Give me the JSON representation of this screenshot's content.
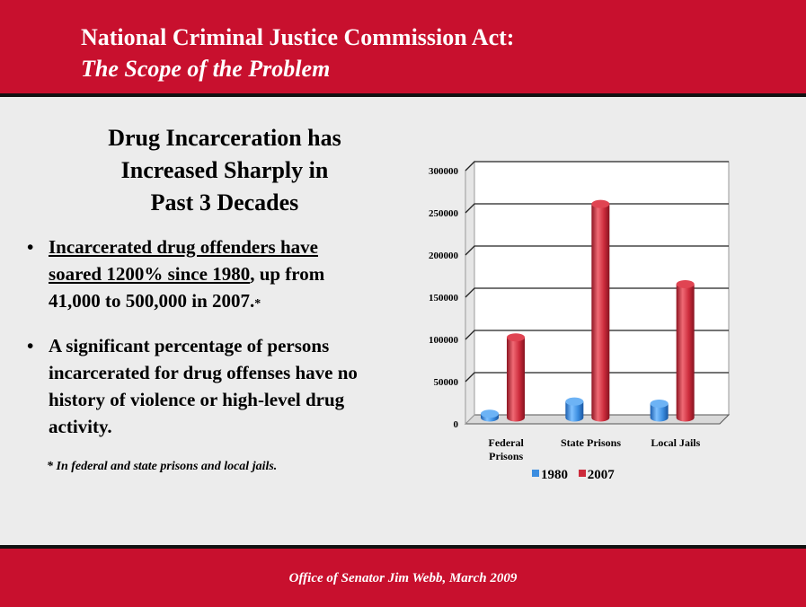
{
  "header": {
    "title_line1": "National Criminal Justice Commission Act:",
    "title_line2": "The Scope of the Problem"
  },
  "subtitle": [
    "Drug Incarceration has",
    "Increased Sharply in",
    "Past 3 Decades"
  ],
  "bullets": [
    {
      "bullet_char": "•",
      "underlined_l1": "Incarcerated drug offenders have",
      "underlined_l2": "soared 1200% since 1980",
      "rest_l2": ", up from",
      "l3": "41,000 to 500,000 in 2007.",
      "asterisk": "*"
    },
    {
      "bullet_char": "•",
      "lines": [
        "A significant percentage of persons",
        "incarcerated for drug offenses have no",
        "history of violence or high-level drug",
        "activity."
      ]
    }
  ],
  "footnote": "* In federal and state prisons and local jails.",
  "footer": {
    "text": "Office of Senator Jim Webb, March 2009"
  },
  "colors": {
    "accent_red": "#c8102e",
    "series_1980": "#3b8de0",
    "series_2007": "#cc2b3b"
  },
  "chart_data": {
    "type": "bar",
    "categories": [
      [
        "Federal",
        "Prisons"
      ],
      [
        "State Prisons"
      ],
      [
        "Local Jails"
      ]
    ],
    "series": [
      {
        "name": "1980",
        "values": [
          4500,
          19000,
          16500
        ]
      },
      {
        "name": "2007",
        "values": [
          95000,
          253000,
          158000
        ]
      }
    ],
    "ylim": [
      0,
      300000
    ],
    "yticks": [
      "0",
      "50000",
      "100000",
      "150000",
      "200000",
      "250000",
      "300000"
    ],
    "grid": true,
    "legend": "bottom"
  }
}
